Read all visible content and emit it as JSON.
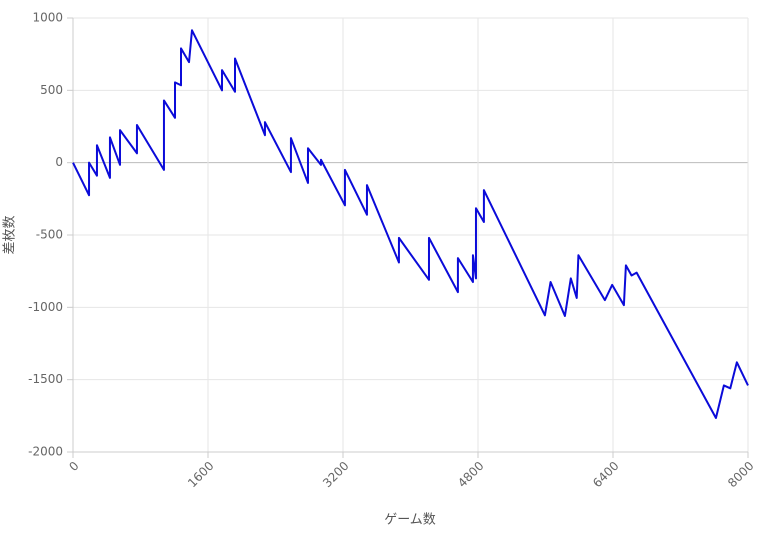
{
  "chart_data": {
    "type": "line",
    "x_label": "ゲーム数",
    "y_label": "差枚数",
    "x": [
      0,
      190,
      190,
      284,
      284,
      438,
      438,
      557,
      557,
      758,
      758,
      1078,
      1078,
      1209,
      1209,
      1280,
      1280,
      1375,
      1410,
      1766,
      1766,
      1920,
      1920,
      2275,
      2275,
      2583,
      2583,
      2785,
      2785,
      2939,
      2939,
      3223,
      3223,
      3484,
      3484,
      3863,
      3863,
      4219,
      4219,
      4562,
      4562,
      4740,
      4740,
      4776,
      4776,
      4870,
      4870,
      5593,
      5660,
      5830,
      5900,
      5970,
      5990,
      6304,
      6390,
      6529,
      6553,
      6620,
      6680,
      7620,
      7714,
      7790,
      7868,
      8000
    ],
    "series": [
      {
        "color": "#0b0bd9",
        "values": [
          0,
          -225,
          0,
          -90,
          120,
          -105,
          175,
          -15,
          225,
          65,
          260,
          -50,
          430,
          310,
          555,
          535,
          790,
          695,
          915,
          500,
          640,
          490,
          720,
          190,
          280,
          -65,
          170,
          -140,
          100,
          -15,
          20,
          -295,
          -50,
          -360,
          -155,
          -690,
          -520,
          -810,
          -520,
          -895,
          -660,
          -825,
          -640,
          -800,
          -315,
          -410,
          -190,
          -1055,
          -825,
          -1060,
          -800,
          -935,
          -640,
          -950,
          -845,
          -985,
          -710,
          -780,
          -760,
          -1765,
          -1540,
          -1560,
          -1380,
          -1540
        ]
      }
    ],
    "xlim": [
      0,
      8000
    ],
    "xticks": [
      0,
      1600,
      3200,
      4800,
      6400,
      8000
    ],
    "ylim": [
      -2000,
      1000
    ],
    "yticks": [
      -2000,
      -1500,
      -1000,
      -500,
      0,
      500,
      1000
    ],
    "grid": true
  }
}
